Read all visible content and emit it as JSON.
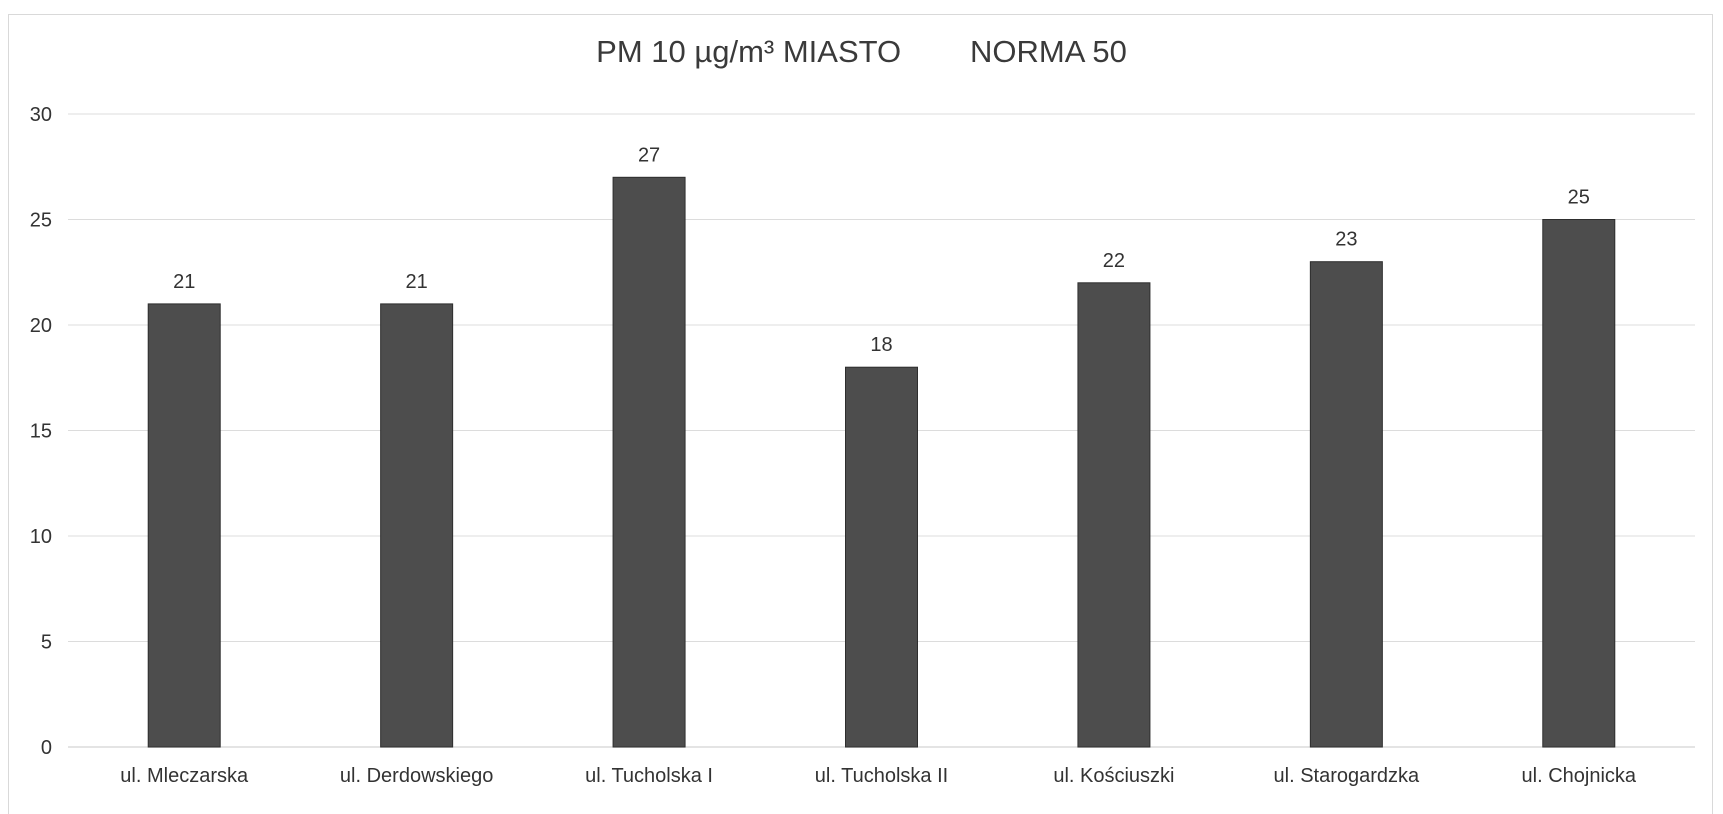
{
  "chart_data": {
    "type": "bar",
    "title": "PM 10 µg/m³ MIASTO        NORMA 50",
    "xlabel": "",
    "ylabel": "",
    "categories": [
      "ul. Mleczarska",
      "ul. Derdowskiego",
      "ul. Tucholska I",
      "ul. Tucholska II",
      "ul. Kościuszki",
      "ul. Starogardzka",
      "ul. Chojnicka"
    ],
    "values": [
      21,
      21,
      27,
      18,
      22,
      23,
      25
    ],
    "data_labels": [
      "21",
      "21",
      "27",
      "18",
      "22",
      "23",
      "25"
    ],
    "ylim": [
      0,
      30
    ],
    "yticks": [
      0,
      5,
      10,
      15,
      20,
      25,
      30
    ],
    "grid": true,
    "legend": "none",
    "colors": {
      "bar": "#4d4d4d",
      "bar_edge": "#2e2e2e",
      "grid": "#dcdcdc",
      "text": "#333333"
    }
  }
}
